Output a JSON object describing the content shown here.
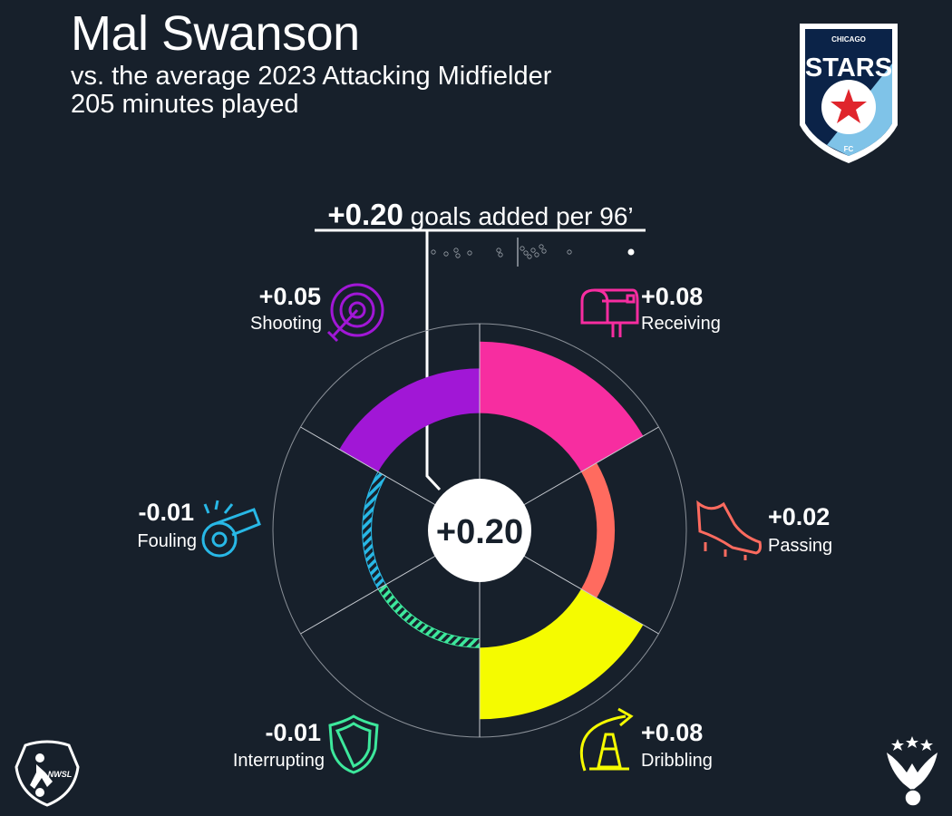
{
  "header": {
    "player": "Mal Swanson",
    "comparison": "vs. the average 2023 Attacking Midfielder",
    "minutes": "205 minutes played"
  },
  "headline": {
    "value": "+0.20",
    "text": "goals added per 96’"
  },
  "logos": {
    "club_top": "CHICAGO",
    "club_name": "STARS",
    "club_bottom": "FC",
    "league": "NWSL"
  },
  "colors": {
    "background": "#17202b",
    "shooting": "#a117d6",
    "receiving": "#f72da0",
    "passing": "#ff6b5f",
    "dribbling": "#f5fb00",
    "interrupting": "#3de89c",
    "fouling": "#28b8e6"
  },
  "chart_data": {
    "type": "polar-bar",
    "total": 0.2,
    "total_label": "+0.20",
    "categories": [
      {
        "name": "Receiving",
        "value": 0.08,
        "label": "+0.08",
        "icon": "mailbox-icon"
      },
      {
        "name": "Passing",
        "value": 0.02,
        "label": "+0.02",
        "icon": "cleat-icon"
      },
      {
        "name": "Dribbling",
        "value": 0.08,
        "label": "+0.08",
        "icon": "cone-icon"
      },
      {
        "name": "Interrupting",
        "value": -0.01,
        "label": "-0.01",
        "icon": "shield-icon"
      },
      {
        "name": "Fouling",
        "value": -0.01,
        "label": "-0.01",
        "icon": "whistle-icon"
      },
      {
        "name": "Shooting",
        "value": 0.05,
        "label": "+0.05",
        "icon": "target-icon"
      }
    ],
    "rlim": [
      -0.05,
      0.1
    ],
    "distribution_note": "dots show other players' totals; white dot = player"
  }
}
